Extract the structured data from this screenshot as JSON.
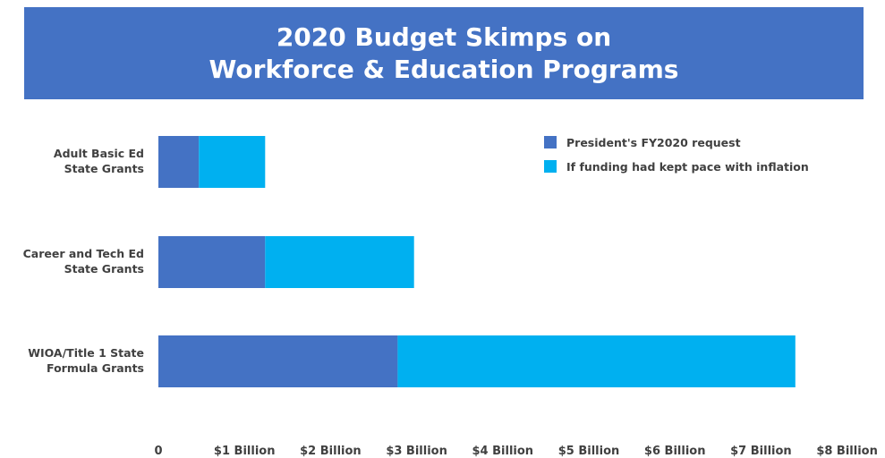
{
  "header": {
    "title_line1": "2020 Budget Skimps on",
    "title_line2": "Workforce & Education Programs"
  },
  "colors": {
    "banner": "#4472c4",
    "request": "#4472c4",
    "inflation": "#00b0f0"
  },
  "chart_data": {
    "type": "bar",
    "orientation": "horizontal",
    "stacked": true,
    "title": "2020 Budget Skimps on Workforce & Education Programs",
    "categories": [
      [
        "Adult Basic Ed",
        "State Grants"
      ],
      [
        "Career and Tech Ed",
        "State Grants"
      ],
      [
        "WIOA/Title 1 State",
        "Formula Grants"
      ]
    ],
    "series": [
      {
        "name": "President's FY2020 request",
        "color": "#4472c4",
        "values": [
          0.47,
          1.24,
          2.78
        ]
      },
      {
        "name": "If funding had kept pace with inflation",
        "color": "#00b0f0",
        "values": [
          0.77,
          1.73,
          4.62
        ]
      }
    ],
    "xlim": [
      0,
      8
    ],
    "xticks": [
      0,
      1,
      2,
      3,
      4,
      5,
      6,
      7,
      8
    ],
    "xtick_labels": [
      "0",
      "$1 Billion",
      "$2 Billion",
      "$3 Billion",
      "$4 Billion",
      "$5 Billion",
      "$6 Billion",
      "$7 Billion",
      "$8 Billion"
    ],
    "grid": false,
    "legend_position": "top-right"
  }
}
